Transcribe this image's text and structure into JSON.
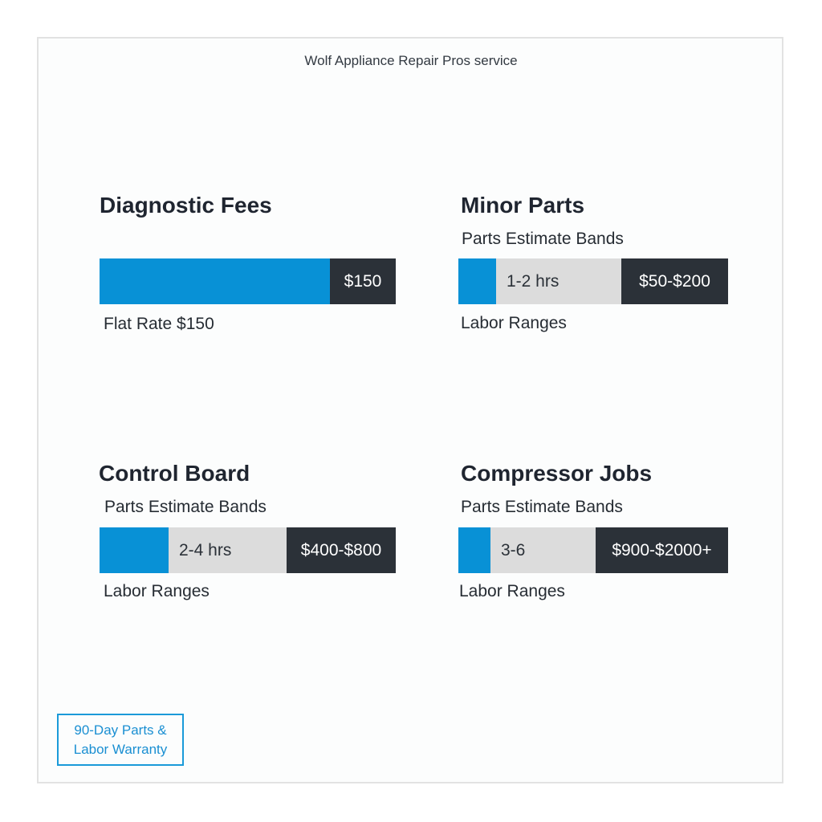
{
  "header": {
    "title": "Wolf Appliance Repair Pros service"
  },
  "colors": {
    "accent": "#0891d6",
    "dark": "#2b3138",
    "neutral": "#dcdcdc"
  },
  "sections": [
    {
      "title": "Diagnostic Fees",
      "subtitle": "",
      "bar": {
        "labor": "",
        "price": "$150"
      },
      "caption": "Flat Rate $150"
    },
    {
      "title": "Minor Parts",
      "subtitle": "Parts Estimate Bands",
      "bar": {
        "labor": "1-2 hrs",
        "price": "$50-$200"
      },
      "caption": "Labor Ranges"
    },
    {
      "title": "Control Board",
      "subtitle": "Parts Estimate Bands",
      "bar": {
        "labor": "2-4 hrs",
        "price": "$400-$800"
      },
      "caption": "Labor Ranges"
    },
    {
      "title": "Compressor Jobs",
      "subtitle": "Parts Estimate Bands",
      "bar": {
        "labor": "3-6",
        "price": "$900-$2000+"
      },
      "caption": "Labor Ranges"
    }
  ],
  "warranty": {
    "line1": "90-Day Parts &",
    "line2": "Labor Warranty"
  }
}
